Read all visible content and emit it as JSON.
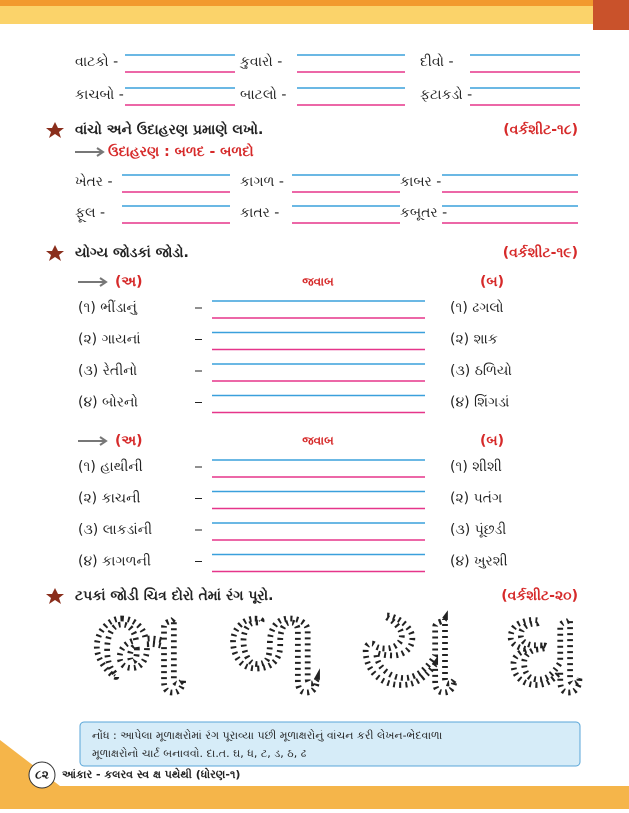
{
  "exercise_1": {
    "rows": [
      [
        "વાટકો -",
        "કુવારો -",
        "દીવો -"
      ],
      [
        "કાચબો -",
        "બાટલો -",
        "ફટાકડો -"
      ]
    ]
  },
  "exercise_2": {
    "instruction": "વાંચો અને ઉદાહરણ પ્રમાણે લખો.",
    "worksheet": "(વર્કશીટ-૧૮)",
    "example": "ઉદાહરણ : બળદ - બળદો",
    "rows": [
      [
        "ખેતર -",
        "કાગળ -",
        "કાબર -"
      ],
      [
        "ફૂલ -",
        "કાતર -",
        "કબૂતર -"
      ]
    ]
  },
  "exercise_3": {
    "instruction": "યોગ્ય જોડકાં જોડો.",
    "worksheet": "(વર્કશીટ-૧૯)",
    "groups": [
      {
        "col_a": "(અ)",
        "answer": "જવાબ",
        "col_b": "(બ)",
        "left": [
          "(૧) ભીંડાનું",
          "(૨) ગાયનાં",
          "(૩) રેતીનો",
          "(૪) બોરનો"
        ],
        "right": [
          "(૧) ઢગલો",
          "(૨) શાક",
          "(૩) ઠળિયો",
          "(૪) શિંગડાં"
        ]
      },
      {
        "col_a": "(અ)",
        "answer": "જવાબ",
        "col_b": "(બ)",
        "left": [
          "(૧) હાથીની",
          "(૨) કાચની",
          "(૩) લાકડાંની",
          "(૪) કાગળની"
        ],
        "right": [
          "(૧) શીશી",
          "(૨) પતંગ",
          "(૩) પૂંછડી",
          "(૪) ખુરશી"
        ]
      }
    ]
  },
  "exercise_4": {
    "instruction": "ટપકાં જોડી ચિત્ર દોરો તેમાં રંગ પૂરો.",
    "worksheet": "(વર્કશીટ-૨૦)",
    "letters": [
      "ભ",
      "ળ",
      "ય",
      "ઘ"
    ]
  },
  "note": {
    "line1": "નોંધ : આપેલા મૂળાક્ષરોમાં રંગ પૂરાવ્યા પછી મૂળાક્ષરોનું વાંચન કરી લેખન-ભેદવાળા",
    "line2": "મૂળાક્ષરોનો ચાર્ટ બનાવવો. દા.ત. ઘ, ધ, ટ, ડ, ઠ, ઢ"
  },
  "footer": {
    "page": "૮૨",
    "text": "આંકાર - કલરવ સ્વ ક્ષ પથેથી (ધોરણ-૧)"
  }
}
